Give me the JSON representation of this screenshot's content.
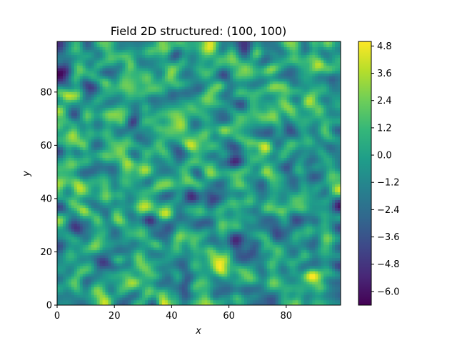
{
  "chart_data": {
    "type": "heatmap",
    "title": "Field 2D structured: (100, 100)",
    "xlabel": "x",
    "ylabel": "y",
    "xlim": [
      0,
      99
    ],
    "ylim": [
      0,
      99
    ],
    "grid_shape": [
      100,
      100
    ],
    "x_ticks": [
      0,
      20,
      40,
      60,
      80
    ],
    "y_ticks": [
      0,
      20,
      40,
      60,
      80
    ],
    "grid": false,
    "colormap": "viridis",
    "colorbar": {
      "range": [
        -6.6,
        5.0
      ],
      "ticks": [
        "4.8",
        "3.6",
        "2.4",
        "1.2",
        "0.0",
        "−1.2",
        "−2.4",
        "−3.6",
        "−4.8",
        "−6.0"
      ],
      "tick_values": [
        4.8,
        3.6,
        2.4,
        1.2,
        0.0,
        -1.2,
        -2.4,
        -3.6,
        -4.8,
        -6.0
      ]
    },
    "colors": [
      "#440154",
      "#482878",
      "#3e4989",
      "#31688e",
      "#26828e",
      "#1f9e89",
      "#35b779",
      "#6ece58",
      "#b5de2b",
      "#fde725"
    ]
  }
}
